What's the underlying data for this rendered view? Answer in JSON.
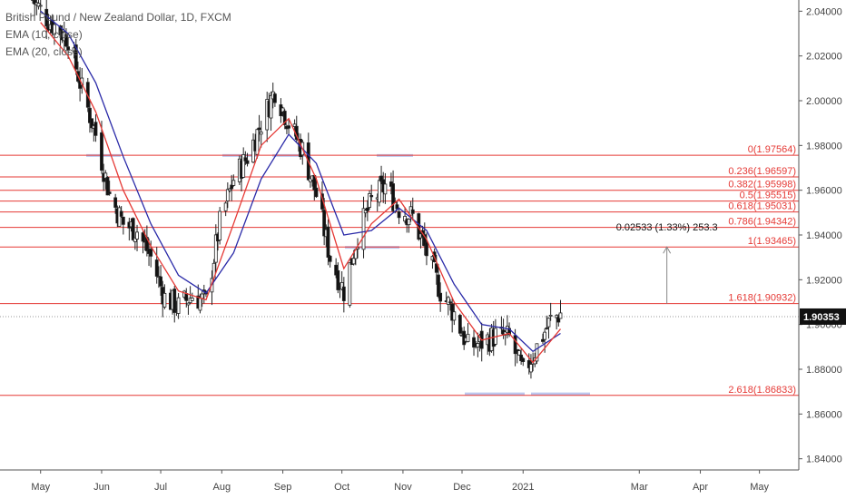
{
  "legend": {
    "title": "British Pound / New Zealand Dollar, 1D, FXCM",
    "ema1": "EMA (10, close)",
    "ema2": "EMA (20, close)"
  },
  "colors": {
    "up_candle": "#333333",
    "down_candle": "#111111",
    "ema_fast": "#e53935",
    "ema_slow": "#2a2aa8",
    "fib_line": "#e53935",
    "price_tag_bg": "#111111",
    "support_zone": "#bcc6ee"
  },
  "chart_data": {
    "type": "candlestick",
    "symbol": "British Pound / New Zealand Dollar",
    "timeframe": "1D",
    "source": "FXCM",
    "ylim": [
      1.835,
      2.045
    ],
    "y_ticks": [
      "2.04000",
      "2.02000",
      "2.00000",
      "1.98000",
      "1.96000",
      "1.94000",
      "1.92000",
      "1.90000",
      "1.88000",
      "1.86000",
      "1.84000"
    ],
    "x_ticks": [
      "May",
      "Jun",
      "Jul",
      "Aug",
      "Sep",
      "Oct",
      "Nov",
      "Dec",
      "2021",
      "Mar",
      "Apr",
      "May"
    ],
    "last_price": "1.90353",
    "fib_levels": [
      {
        "label": "0(1.97564)",
        "value": 1.97564
      },
      {
        "label": "0.236(1.96597)",
        "value": 1.96597
      },
      {
        "label": "0.382(1.95998)",
        "value": 1.95998
      },
      {
        "label": "0.5(1.95515)",
        "value": 1.95515
      },
      {
        "label": "0.618(1.95031)",
        "value": 1.95031
      },
      {
        "label": "0.786(1.94342)",
        "value": 1.94342
      },
      {
        "label": "1(1.93465)",
        "value": 1.93465
      },
      {
        "label": "1.618(1.90932)",
        "value": 1.90932
      },
      {
        "label": "2.618(1.86833)",
        "value": 1.86833
      }
    ],
    "measure_label": "0.02533 (1.33%) 253.3",
    "price_series": [
      {
        "date": "2020-04-27",
        "value": 2.045
      },
      {
        "date": "2020-05-06",
        "value": 2.035
      },
      {
        "date": "2020-05-15",
        "value": 2.028
      },
      {
        "date": "2020-05-22",
        "value": 2.005
      },
      {
        "date": "2020-05-29",
        "value": 1.985
      },
      {
        "date": "2020-06-05",
        "value": 1.958
      },
      {
        "date": "2020-06-12",
        "value": 1.945
      },
      {
        "date": "2020-06-19",
        "value": 1.942
      },
      {
        "date": "2020-06-26",
        "value": 1.93
      },
      {
        "date": "2020-07-03",
        "value": 1.912
      },
      {
        "date": "2020-07-10",
        "value": 1.908
      },
      {
        "date": "2020-07-17",
        "value": 1.913
      },
      {
        "date": "2020-07-24",
        "value": 1.91
      },
      {
        "date": "2020-07-31",
        "value": 1.945
      },
      {
        "date": "2020-08-07",
        "value": 1.965
      },
      {
        "date": "2020-08-14",
        "value": 1.975
      },
      {
        "date": "2020-08-21",
        "value": 1.99
      },
      {
        "date": "2020-08-28",
        "value": 2.005
      },
      {
        "date": "2020-09-04",
        "value": 1.99
      },
      {
        "date": "2020-09-11",
        "value": 1.978
      },
      {
        "date": "2020-09-18",
        "value": 1.958
      },
      {
        "date": "2020-09-25",
        "value": 1.93
      },
      {
        "date": "2020-10-02",
        "value": 1.915
      },
      {
        "date": "2020-10-09",
        "value": 1.94
      },
      {
        "date": "2020-10-16",
        "value": 1.955
      },
      {
        "date": "2020-10-23",
        "value": 1.962
      },
      {
        "date": "2020-10-30",
        "value": 1.952
      },
      {
        "date": "2020-11-06",
        "value": 1.948
      },
      {
        "date": "2020-11-13",
        "value": 1.932
      },
      {
        "date": "2020-11-20",
        "value": 1.915
      },
      {
        "date": "2020-11-27",
        "value": 1.905
      },
      {
        "date": "2020-12-04",
        "value": 1.89
      },
      {
        "date": "2020-12-11",
        "value": 1.892
      },
      {
        "date": "2020-12-18",
        "value": 1.895
      },
      {
        "date": "2020-12-25",
        "value": 1.894
      },
      {
        "date": "2021-01-01",
        "value": 1.878
      },
      {
        "date": "2021-01-08",
        "value": 1.89
      },
      {
        "date": "2021-01-15",
        "value": 1.902
      },
      {
        "date": "2021-01-20",
        "value": 1.905
      }
    ],
    "ema_fast_series": [
      {
        "date": "2020-05-01",
        "value": 2.035
      },
      {
        "date": "2020-05-15",
        "value": 2.02
      },
      {
        "date": "2020-05-29",
        "value": 1.995
      },
      {
        "date": "2020-06-12",
        "value": 1.96
      },
      {
        "date": "2020-06-26",
        "value": 1.935
      },
      {
        "date": "2020-07-10",
        "value": 1.915
      },
      {
        "date": "2020-07-24",
        "value": 1.911
      },
      {
        "date": "2020-08-07",
        "value": 1.945
      },
      {
        "date": "2020-08-21",
        "value": 1.98
      },
      {
        "date": "2020-09-04",
        "value": 1.992
      },
      {
        "date": "2020-09-18",
        "value": 1.965
      },
      {
        "date": "2020-10-02",
        "value": 1.925
      },
      {
        "date": "2020-10-16",
        "value": 1.945
      },
      {
        "date": "2020-10-30",
        "value": 1.956
      },
      {
        "date": "2020-11-13",
        "value": 1.938
      },
      {
        "date": "2020-11-27",
        "value": 1.91
      },
      {
        "date": "2020-12-11",
        "value": 1.893
      },
      {
        "date": "2020-12-25",
        "value": 1.896
      },
      {
        "date": "2021-01-06",
        "value": 1.883
      },
      {
        "date": "2021-01-20",
        "value": 1.898
      }
    ],
    "ema_slow_series": [
      {
        "date": "2020-05-01",
        "value": 2.04
      },
      {
        "date": "2020-05-15",
        "value": 2.03
      },
      {
        "date": "2020-05-29",
        "value": 2.008
      },
      {
        "date": "2020-06-12",
        "value": 1.975
      },
      {
        "date": "2020-06-26",
        "value": 1.945
      },
      {
        "date": "2020-07-10",
        "value": 1.922
      },
      {
        "date": "2020-07-24",
        "value": 1.914
      },
      {
        "date": "2020-08-07",
        "value": 1.932
      },
      {
        "date": "2020-08-21",
        "value": 1.965
      },
      {
        "date": "2020-09-04",
        "value": 1.985
      },
      {
        "date": "2020-09-18",
        "value": 1.972
      },
      {
        "date": "2020-10-02",
        "value": 1.94
      },
      {
        "date": "2020-10-16",
        "value": 1.942
      },
      {
        "date": "2020-10-30",
        "value": 1.952
      },
      {
        "date": "2020-11-13",
        "value": 1.942
      },
      {
        "date": "2020-11-27",
        "value": 1.918
      },
      {
        "date": "2020-12-11",
        "value": 1.9
      },
      {
        "date": "2020-12-25",
        "value": 1.898
      },
      {
        "date": "2021-01-06",
        "value": 1.888
      },
      {
        "date": "2021-01-20",
        "value": 1.896
      }
    ]
  }
}
